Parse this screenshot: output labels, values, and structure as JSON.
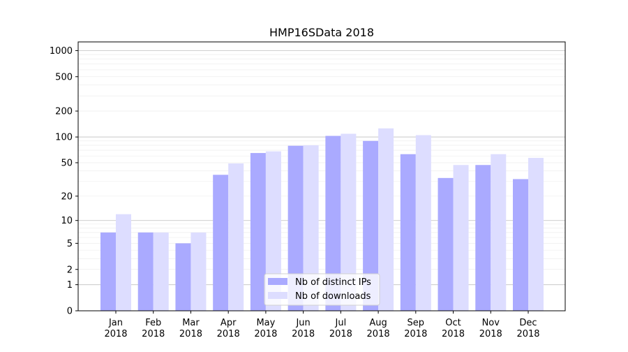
{
  "chart_data": {
    "type": "bar",
    "title": "HMP16SData 2018",
    "xlabel": "",
    "ylabel": "",
    "yscale": "log10(1+y)",
    "ylim": [
      0,
      1260
    ],
    "yticks": [
      0,
      1,
      2,
      5,
      10,
      20,
      50,
      100,
      200,
      500,
      1000
    ],
    "grid": true,
    "legend_position": "lower-center",
    "categories": [
      "Jan\n2018",
      "Feb\n2018",
      "Mar\n2018",
      "Apr\n2018",
      "May\n2018",
      "Jun\n2018",
      "Jul\n2018",
      "Aug\n2018",
      "Sep\n2018",
      "Oct\n2018",
      "Nov\n2018",
      "Dec\n2018"
    ],
    "series": [
      {
        "name": "Nb of distinct IPs",
        "color": "#aaaaff",
        "values": [
          7,
          7,
          5,
          36,
          65,
          79,
          103,
          90,
          63,
          33,
          47,
          32
        ]
      },
      {
        "name": "Nb of downloads",
        "color": "#ddddff",
        "values": [
          12,
          7,
          7,
          49,
          68,
          80,
          109,
          126,
          105,
          47,
          63,
          57
        ]
      }
    ]
  }
}
